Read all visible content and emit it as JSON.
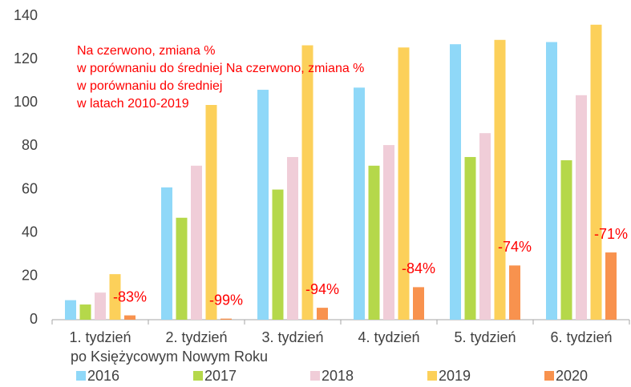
{
  "chart_data": {
    "type": "bar",
    "categories": [
      "1. tydzień",
      "2. tydzień",
      "3. tydzień",
      "4. tydzień",
      "5. tydzień",
      "6. tydzień"
    ],
    "x_label": "po Księżycowym Nowym Roku",
    "series": [
      {
        "name": "2016",
        "color": "#8fd8f8",
        "values": [
          9,
          61,
          106,
          107,
          127,
          128
        ]
      },
      {
        "name": "2017",
        "color": "#b5d84a",
        "values": [
          7,
          47,
          60,
          71,
          75,
          73.5
        ]
      },
      {
        "name": "2018",
        "color": "#f0cdd8",
        "values": [
          12.5,
          71,
          75,
          80.5,
          86,
          103.5
        ]
      },
      {
        "name": "2019",
        "color": "#fcd05a",
        "values": [
          21,
          99,
          126.5,
          125.5,
          129,
          136
        ]
      },
      {
        "name": "2020",
        "color": "#f8924e",
        "values": [
          2,
          0.5,
          5.5,
          15,
          25,
          31
        ],
        "annotations": [
          "-83%",
          "-99%",
          "-94%",
          "-84%",
          "-74%",
          "-71%"
        ]
      }
    ],
    "note": [
      "Na czerwono, zmiana %",
      "w porównaniu do średniej Na czerwono, zmiana %",
      "w porównaniu do średniej",
      "w latach 2010-2019"
    ],
    "note_color": "#ff0000",
    "ylim": [
      0,
      140
    ],
    "yticks": [
      0,
      20,
      40,
      60,
      80,
      100,
      120,
      140
    ],
    "grid": false,
    "legend": "bottom"
  }
}
